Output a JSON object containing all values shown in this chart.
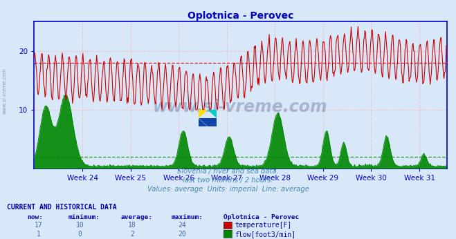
{
  "title": "Oplotnica - Perovec",
  "title_color": "#0000cc",
  "bg_color": "#d8e8f8",
  "plot_bg_color": "#d8e8f8",
  "grid_color_red": "#ffaaaa",
  "grid_color_green": "#aaffaa",
  "axis_color": "#0000cc",
  "tick_color": "#4466aa",
  "x_tick_labels": [
    "Week 24",
    "Week 25",
    "Week 26",
    "Week 27",
    "Week 28",
    "Week 29",
    "Week 30",
    "Week 31"
  ],
  "x_tick_positions": [
    84,
    168,
    252,
    336,
    420,
    504,
    588,
    672
  ],
  "ylim": [
    0,
    25
  ],
  "xlim": [
    0,
    720
  ],
  "temp_avg": 18,
  "flow_avg": 2,
  "temp_color": "#cc0000",
  "flow_color": "#008800",
  "subtitle_lines": [
    "Slovenia / river and sea data.",
    "last two months / 2 hours.",
    "Values: average  Units: imperial  Line: average"
  ],
  "subtitle_color": "#4488aa",
  "table_header": "CURRENT AND HISTORICAL DATA",
  "table_color": "#0000aa",
  "col_headers": [
    "now:",
    "minimum:",
    "average:",
    "maximum:",
    "Oplotnica - Perovec"
  ],
  "temp_row": [
    "17",
    "10",
    "18",
    "24"
  ],
  "flow_row": [
    "1",
    "0",
    "2",
    "20"
  ],
  "temp_label": "temperature[F]",
  "flow_label": "flow[foot3/min]",
  "watermark": "www.si-vreme.com",
  "watermark_color": "#1a3a7a",
  "side_text": "www.si-vreme.com",
  "side_color": "#7799bb"
}
